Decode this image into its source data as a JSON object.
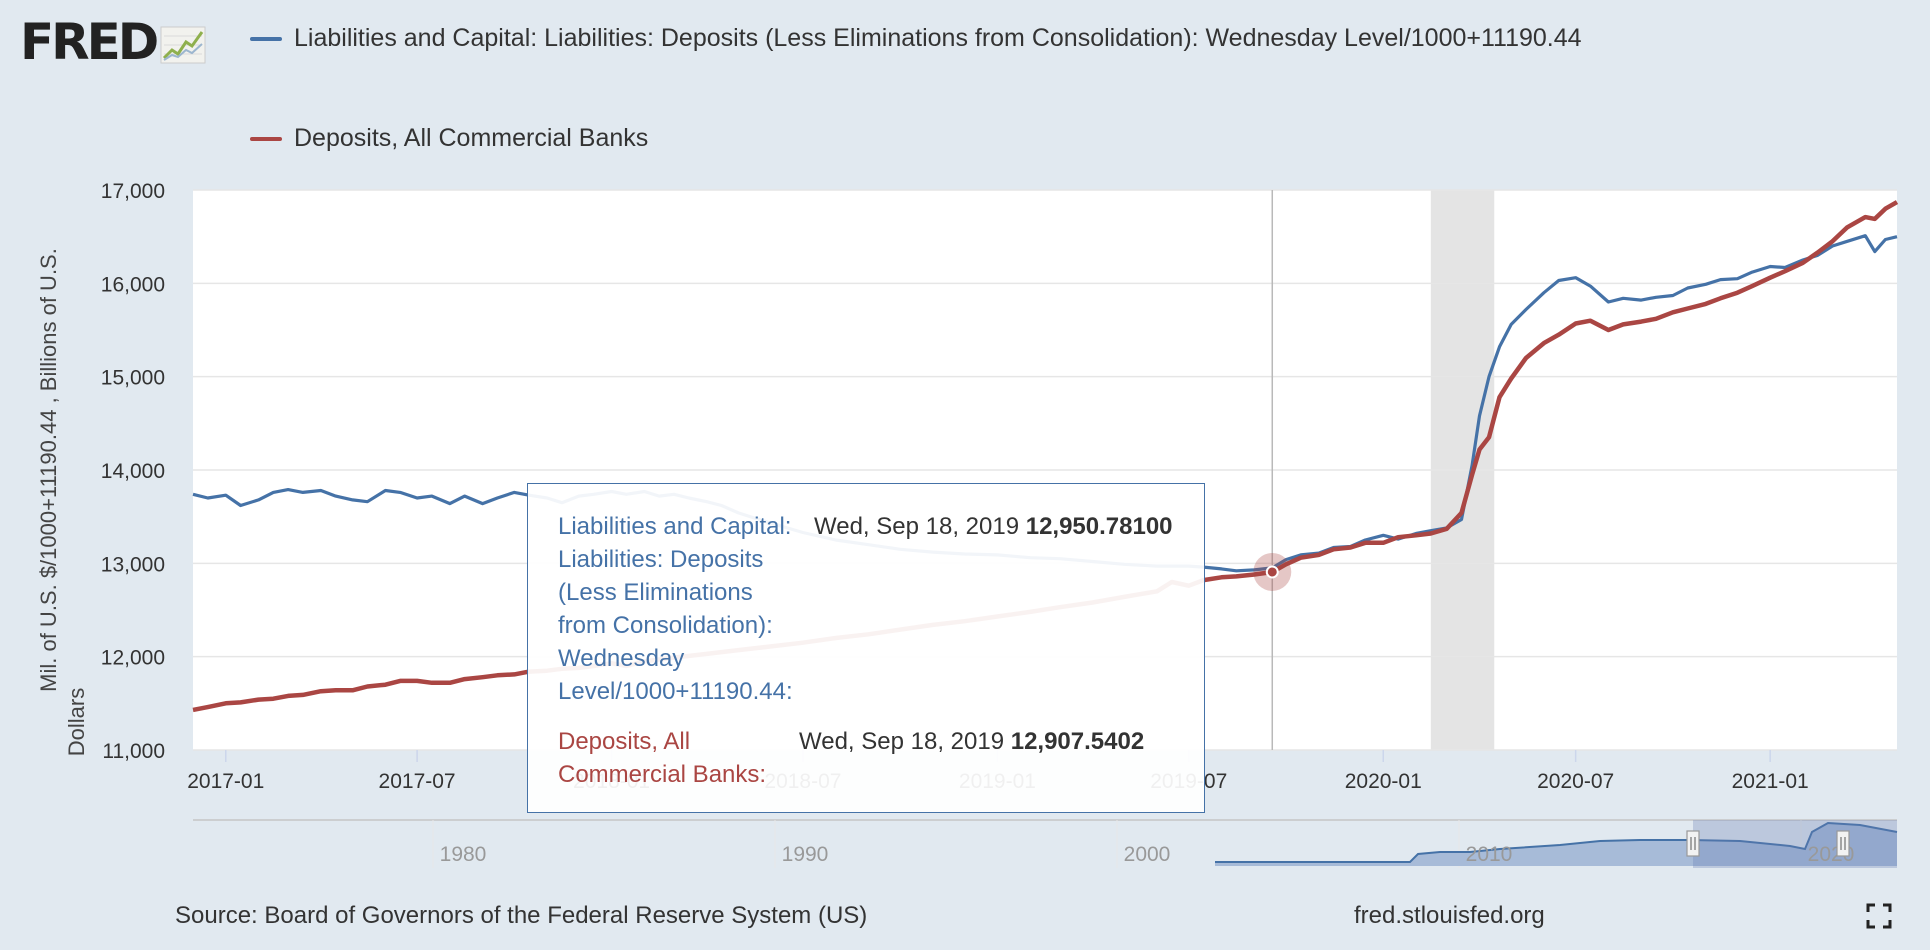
{
  "logo": {
    "text": "FRED",
    "icon": "fred-line-chart-icon"
  },
  "legend": [
    {
      "label": "Liabilities and Capital: Liabilities: Deposits (Less Eliminations from Consolidation): Wednesday Level/1000+11190.44",
      "color": "#4572a7"
    },
    {
      "label": "Deposits, All Commercial Banks",
      "color": "#aa4643"
    }
  ],
  "tooltip": {
    "series1_label_lines": [
      "Liabilities and Capital:",
      "Liabilities: Deposits",
      "(Less Eliminations",
      "from Consolidation):",
      "Wednesday",
      "Level/1000+11190.44:"
    ],
    "series1_date": "Wed, Sep 18, 2019",
    "series1_value": "12,950.78100",
    "series2_label_lines": [
      "Deposits, All",
      "Commercial Banks:"
    ],
    "series2_date": "Wed, Sep 18, 2019",
    "series2_value": "12,907.5402"
  },
  "navigator": {
    "labels": [
      "1980",
      "1990",
      "2000",
      "2010",
      "2020"
    ]
  },
  "footer": {
    "source": "Source: Board of Governors of the Federal Reserve System (US)",
    "site": "fred.stlouisfed.org"
  },
  "fullscreen_icon": "fullscreen-icon",
  "chart_data": {
    "type": "line",
    "ylabel": "Mil. of U.S. $/1000+11190.44 , Billions of U.S. Dollars",
    "ylim": [
      11000,
      17000
    ],
    "yticks": [
      "11,000",
      "12,000",
      "13,000",
      "14,000",
      "15,000",
      "16,000",
      "17,000"
    ],
    "xlim": [
      "2016-12-01",
      "2021-05-01"
    ],
    "xticks": [
      "2017-01",
      "2017-07",
      "2018-01",
      "2018-07",
      "2019-01",
      "2019-07",
      "2020-01",
      "2020-07",
      "2021-01"
    ],
    "recession": [
      "2020-02-15",
      "2020-04-15"
    ],
    "crosshair": "2019-09-18",
    "grid": true,
    "legend": "top",
    "series": [
      {
        "name": "Liabilities and Capital: Liabilities: Deposits (Less Eliminations from Consolidation): Wednesday Level/1000+11190.44",
        "color": "#4572a7",
        "points": [
          [
            "2016-12-01",
            13740
          ],
          [
            "2016-12-15",
            13700
          ],
          [
            "2017-01-01",
            13730
          ],
          [
            "2017-01-15",
            13620
          ],
          [
            "2017-02-01",
            13680
          ],
          [
            "2017-02-15",
            13760
          ],
          [
            "2017-03-01",
            13790
          ],
          [
            "2017-03-15",
            13760
          ],
          [
            "2017-04-01",
            13780
          ],
          [
            "2017-04-15",
            13720
          ],
          [
            "2017-05-01",
            13680
          ],
          [
            "2017-05-15",
            13660
          ],
          [
            "2017-06-01",
            13780
          ],
          [
            "2017-06-15",
            13760
          ],
          [
            "2017-07-01",
            13700
          ],
          [
            "2017-07-15",
            13720
          ],
          [
            "2017-08-01",
            13640
          ],
          [
            "2017-08-15",
            13720
          ],
          [
            "2017-09-01",
            13640
          ],
          [
            "2017-09-15",
            13700
          ],
          [
            "2017-10-01",
            13760
          ],
          [
            "2017-10-15",
            13730
          ],
          [
            "2017-11-01",
            13700
          ],
          [
            "2017-11-15",
            13650
          ],
          [
            "2017-12-01",
            13720
          ],
          [
            "2017-12-15",
            13740
          ],
          [
            "2018-01-01",
            13770
          ],
          [
            "2018-01-15",
            13740
          ],
          [
            "2018-02-01",
            13770
          ],
          [
            "2018-02-15",
            13720
          ],
          [
            "2018-03-01",
            13740
          ],
          [
            "2018-03-15",
            13700
          ],
          [
            "2018-04-01",
            13660
          ],
          [
            "2018-04-15",
            13620
          ],
          [
            "2018-05-01",
            13540
          ],
          [
            "2018-05-15",
            13490
          ],
          [
            "2018-06-01",
            13430
          ],
          [
            "2018-07-01",
            13330
          ],
          [
            "2018-08-01",
            13250
          ],
          [
            "2018-09-01",
            13200
          ],
          [
            "2018-10-01",
            13150
          ],
          [
            "2018-11-01",
            13120
          ],
          [
            "2018-12-01",
            13100
          ],
          [
            "2019-01-01",
            13090
          ],
          [
            "2019-02-01",
            13060
          ],
          [
            "2019-03-01",
            13050
          ],
          [
            "2019-04-01",
            13020
          ],
          [
            "2019-05-01",
            12990
          ],
          [
            "2019-06-01",
            12970
          ],
          [
            "2019-07-01",
            12970
          ],
          [
            "2019-07-15",
            12960
          ],
          [
            "2019-08-01",
            12940
          ],
          [
            "2019-08-15",
            12920
          ],
          [
            "2019-09-01",
            12930
          ],
          [
            "2019-09-18",
            12950.78
          ],
          [
            "2019-10-01",
            13040
          ],
          [
            "2019-10-15",
            13090
          ],
          [
            "2019-11-01",
            13110
          ],
          [
            "2019-11-15",
            13170
          ],
          [
            "2019-12-01",
            13180
          ],
          [
            "2019-12-15",
            13250
          ],
          [
            "2020-01-01",
            13300
          ],
          [
            "2020-01-15",
            13260
          ],
          [
            "2020-02-01",
            13320
          ],
          [
            "2020-02-15",
            13350
          ],
          [
            "2020-03-01",
            13380
          ],
          [
            "2020-03-15",
            13470
          ],
          [
            "2020-03-25",
            14050
          ],
          [
            "2020-04-01",
            14580
          ],
          [
            "2020-04-10",
            15000
          ],
          [
            "2020-04-20",
            15320
          ],
          [
            "2020-05-01",
            15560
          ],
          [
            "2020-05-15",
            15720
          ],
          [
            "2020-06-01",
            15900
          ],
          [
            "2020-06-15",
            16030
          ],
          [
            "2020-07-01",
            16060
          ],
          [
            "2020-07-15",
            15970
          ],
          [
            "2020-08-01",
            15800
          ],
          [
            "2020-08-15",
            15840
          ],
          [
            "2020-09-01",
            15820
          ],
          [
            "2020-09-15",
            15850
          ],
          [
            "2020-10-01",
            15870
          ],
          [
            "2020-10-15",
            15950
          ],
          [
            "2020-11-01",
            15990
          ],
          [
            "2020-11-15",
            16040
          ],
          [
            "2020-12-01",
            16050
          ],
          [
            "2020-12-15",
            16120
          ],
          [
            "2021-01-01",
            16180
          ],
          [
            "2021-01-15",
            16170
          ],
          [
            "2021-02-01",
            16250
          ],
          [
            "2021-02-15",
            16300
          ],
          [
            "2021-03-01",
            16400
          ],
          [
            "2021-03-15",
            16450
          ],
          [
            "2021-04-01",
            16510
          ],
          [
            "2021-04-10",
            16340
          ],
          [
            "2021-04-20",
            16470
          ],
          [
            "2021-05-01",
            16500
          ]
        ]
      },
      {
        "name": "Deposits, All Commercial Banks",
        "color": "#aa4643",
        "points": [
          [
            "2016-12-01",
            11430
          ],
          [
            "2016-12-15",
            11460
          ],
          [
            "2017-01-01",
            11500
          ],
          [
            "2017-01-15",
            11510
          ],
          [
            "2017-02-01",
            11540
          ],
          [
            "2017-02-15",
            11550
          ],
          [
            "2017-03-01",
            11580
          ],
          [
            "2017-03-15",
            11590
          ],
          [
            "2017-04-01",
            11630
          ],
          [
            "2017-04-15",
            11640
          ],
          [
            "2017-05-01",
            11640
          ],
          [
            "2017-05-15",
            11680
          ],
          [
            "2017-06-01",
            11700
          ],
          [
            "2017-06-15",
            11740
          ],
          [
            "2017-07-01",
            11740
          ],
          [
            "2017-07-15",
            11720
          ],
          [
            "2017-08-01",
            11720
          ],
          [
            "2017-08-15",
            11760
          ],
          [
            "2017-09-01",
            11780
          ],
          [
            "2017-09-15",
            11800
          ],
          [
            "2017-10-01",
            11810
          ],
          [
            "2017-10-15",
            11840
          ],
          [
            "2017-11-01",
            11850
          ],
          [
            "2017-11-15",
            11870
          ],
          [
            "2017-12-01",
            11880
          ],
          [
            "2017-12-15",
            11900
          ],
          [
            "2018-01-01",
            11930
          ],
          [
            "2018-01-15",
            11900
          ],
          [
            "2018-02-01",
            11950
          ],
          [
            "2018-03-01",
            11990
          ],
          [
            "2018-04-01",
            12030
          ],
          [
            "2018-05-01",
            12070
          ],
          [
            "2018-06-01",
            12110
          ],
          [
            "2018-07-01",
            12150
          ],
          [
            "2018-08-01",
            12200
          ],
          [
            "2018-09-01",
            12240
          ],
          [
            "2018-10-01",
            12290
          ],
          [
            "2018-11-01",
            12340
          ],
          [
            "2018-12-01",
            12380
          ],
          [
            "2019-01-01",
            12430
          ],
          [
            "2019-02-01",
            12480
          ],
          [
            "2019-03-01",
            12530
          ],
          [
            "2019-04-01",
            12580
          ],
          [
            "2019-05-01",
            12640
          ],
          [
            "2019-06-01",
            12700
          ],
          [
            "2019-06-15",
            12800
          ],
          [
            "2019-07-01",
            12760
          ],
          [
            "2019-07-15",
            12820
          ],
          [
            "2019-08-01",
            12850
          ],
          [
            "2019-08-15",
            12860
          ],
          [
            "2019-09-01",
            12880
          ],
          [
            "2019-09-18",
            12907.54
          ],
          [
            "2019-10-01",
            12990
          ],
          [
            "2019-10-15",
            13060
          ],
          [
            "2019-11-01",
            13090
          ],
          [
            "2019-11-15",
            13150
          ],
          [
            "2019-12-01",
            13170
          ],
          [
            "2019-12-15",
            13220
          ],
          [
            "2020-01-01",
            13220
          ],
          [
            "2020-01-15",
            13280
          ],
          [
            "2020-02-01",
            13300
          ],
          [
            "2020-02-15",
            13320
          ],
          [
            "2020-03-01",
            13370
          ],
          [
            "2020-03-15",
            13540
          ],
          [
            "2020-03-25",
            13950
          ],
          [
            "2020-04-01",
            14220
          ],
          [
            "2020-04-10",
            14350
          ],
          [
            "2020-04-20",
            14780
          ],
          [
            "2020-05-01",
            14980
          ],
          [
            "2020-05-15",
            15200
          ],
          [
            "2020-06-01",
            15360
          ],
          [
            "2020-06-15",
            15450
          ],
          [
            "2020-07-01",
            15570
          ],
          [
            "2020-07-15",
            15600
          ],
          [
            "2020-08-01",
            15500
          ],
          [
            "2020-08-15",
            15560
          ],
          [
            "2020-09-01",
            15590
          ],
          [
            "2020-09-15",
            15620
          ],
          [
            "2020-10-01",
            15690
          ],
          [
            "2020-10-15",
            15730
          ],
          [
            "2020-11-01",
            15780
          ],
          [
            "2020-11-15",
            15840
          ],
          [
            "2020-12-01",
            15900
          ],
          [
            "2020-12-15",
            15970
          ],
          [
            "2021-01-01",
            16060
          ],
          [
            "2021-01-15",
            16130
          ],
          [
            "2021-02-01",
            16220
          ],
          [
            "2021-02-15",
            16330
          ],
          [
            "2021-03-01",
            16450
          ],
          [
            "2021-03-15",
            16600
          ],
          [
            "2021-04-01",
            16710
          ],
          [
            "2021-04-10",
            16690
          ],
          [
            "2021-04-20",
            16800
          ],
          [
            "2021-05-01",
            16870
          ]
        ]
      }
    ]
  }
}
